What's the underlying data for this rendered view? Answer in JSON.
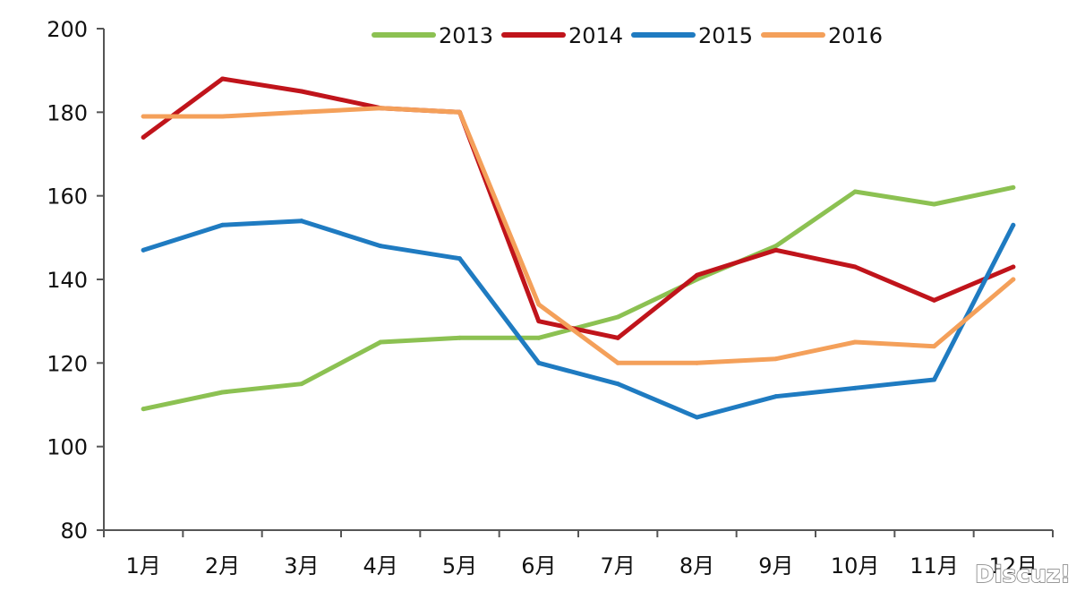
{
  "chart_data": {
    "type": "line",
    "categories": [
      "1月",
      "2月",
      "3月",
      "4月",
      "5月",
      "6月",
      "7月",
      "8月",
      "9月",
      "10月",
      "11月",
      "12月"
    ],
    "ylim": [
      80,
      200
    ],
    "yticks": [
      80,
      100,
      120,
      140,
      160,
      180,
      200
    ],
    "grid": false,
    "legend_position": "top",
    "series": [
      {
        "name": "2013",
        "color": "#8cc152",
        "values": [
          109,
          113,
          115,
          125,
          126,
          126,
          131,
          140,
          148,
          161,
          158,
          162
        ]
      },
      {
        "name": "2014",
        "color": "#c0141b",
        "values": [
          174,
          188,
          185,
          181,
          180,
          130,
          126,
          141,
          147,
          143,
          135,
          143
        ]
      },
      {
        "name": "2015",
        "color": "#1f7bc1",
        "values": [
          147,
          153,
          154,
          148,
          145,
          120,
          115,
          107,
          112,
          114,
          116,
          153
        ]
      },
      {
        "name": "2016",
        "color": "#f4a05a",
        "values": [
          179,
          179,
          180,
          181,
          180,
          134,
          120,
          120,
          121,
          125,
          124,
          140
        ]
      }
    ]
  },
  "watermark": "Discuz!"
}
